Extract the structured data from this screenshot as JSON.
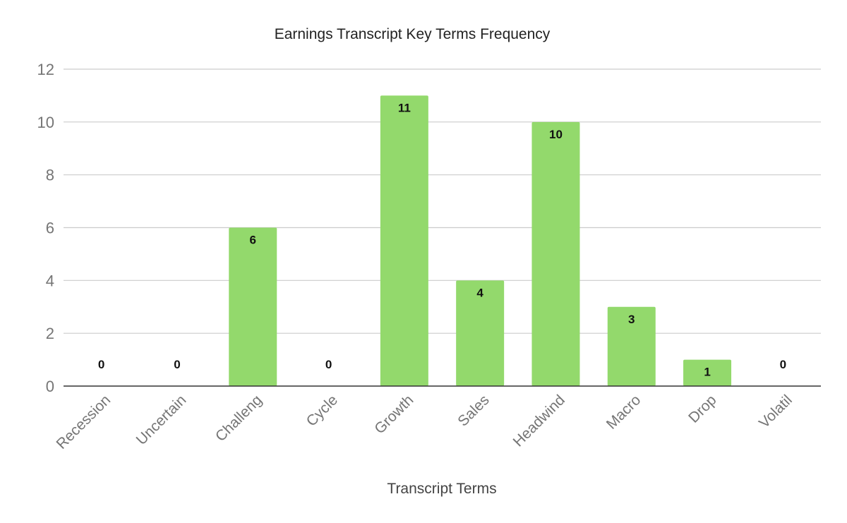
{
  "chart_data": {
    "type": "bar",
    "title": "Earnings Transcript Key Terms Frequency",
    "xlabel": "Transcript Terms",
    "ylabel": "",
    "categories": [
      "Recession",
      "Uncertain",
      "Challeng",
      "Cycle",
      "Growth",
      "Sales",
      "Headwind",
      "Macro",
      "Drop",
      "Volatil"
    ],
    "values": [
      0,
      0,
      6,
      0,
      11,
      4,
      10,
      3,
      1,
      0
    ],
    "ylim": [
      0,
      12
    ],
    "yticks": [
      0,
      2,
      4,
      6,
      8,
      10,
      12
    ],
    "grid": true,
    "legend": "none",
    "data_labels": true,
    "bar_color": "#93d96c"
  }
}
